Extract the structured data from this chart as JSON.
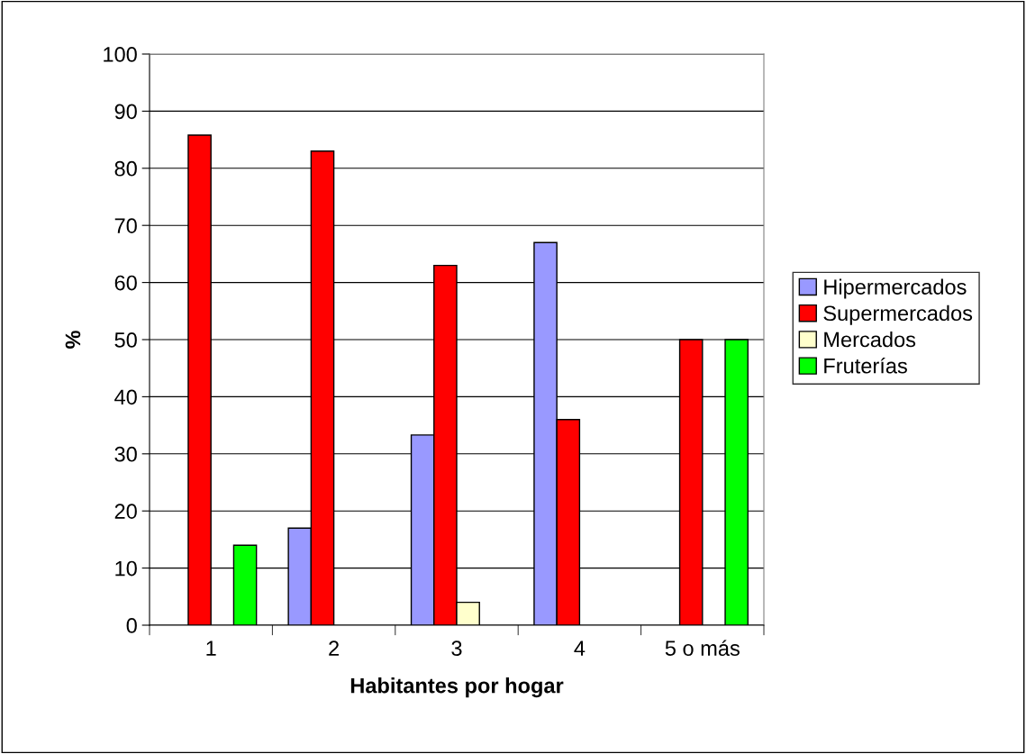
{
  "chart_data": {
    "type": "bar",
    "xlabel": "Habitantes por hogar",
    "ylabel": "%",
    "categories": [
      "1",
      "2",
      "3",
      "4",
      "5 o más"
    ],
    "series": [
      {
        "name": "Hipermercados",
        "color": "#9999ff",
        "values": [
          null,
          17,
          33.3,
          67,
          null
        ]
      },
      {
        "name": "Supermercados",
        "color": "#ff0000",
        "values": [
          85.8,
          83,
          63,
          36,
          50
        ]
      },
      {
        "name": "Mercados",
        "color": "#ffffcc",
        "values": [
          null,
          null,
          4,
          null,
          null
        ]
      },
      {
        "name": "Fruterías",
        "color": "#00ff00",
        "values": [
          14,
          null,
          null,
          null,
          50
        ]
      }
    ],
    "ylim": [
      0,
      100
    ],
    "yticks": [
      0,
      10,
      20,
      30,
      40,
      50,
      60,
      70,
      80,
      90,
      100
    ],
    "grid": "y",
    "legend": "right"
  }
}
